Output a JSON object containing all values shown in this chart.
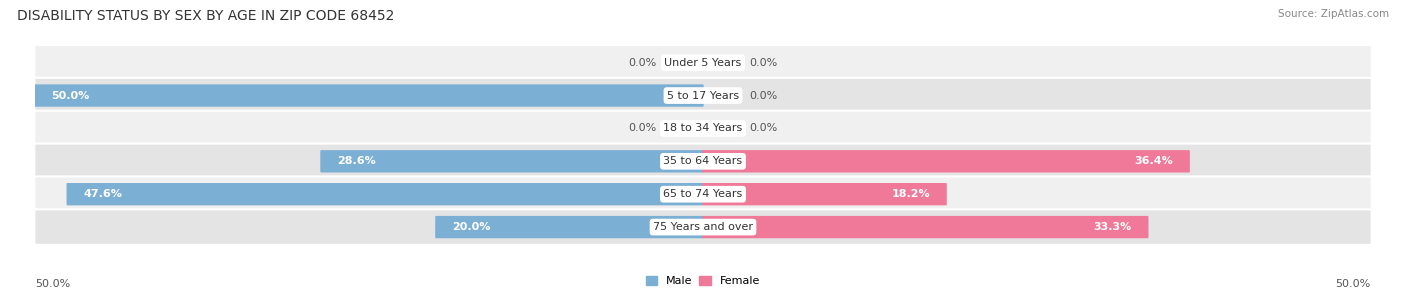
{
  "title": "Disability Status by Sex by Age in Zip Code 68452",
  "source": "Source: ZipAtlas.com",
  "categories": [
    "Under 5 Years",
    "5 to 17 Years",
    "18 to 34 Years",
    "35 to 64 Years",
    "65 to 74 Years",
    "75 Years and over"
  ],
  "male_values": [
    0.0,
    50.0,
    0.0,
    28.6,
    47.6,
    20.0
  ],
  "female_values": [
    0.0,
    0.0,
    0.0,
    36.4,
    18.2,
    33.3
  ],
  "male_color": "#7BAFD4",
  "female_color": "#F07898",
  "male_color_light": "#B8D4EA",
  "female_color_light": "#F8B8CC",
  "row_bg_light": "#F0F0F0",
  "row_bg_dark": "#E4E4E4",
  "xlim": 50.0,
  "legend_male": "Male",
  "legend_female": "Female",
  "title_fontsize": 10,
  "label_fontsize": 8,
  "source_fontsize": 7.5
}
